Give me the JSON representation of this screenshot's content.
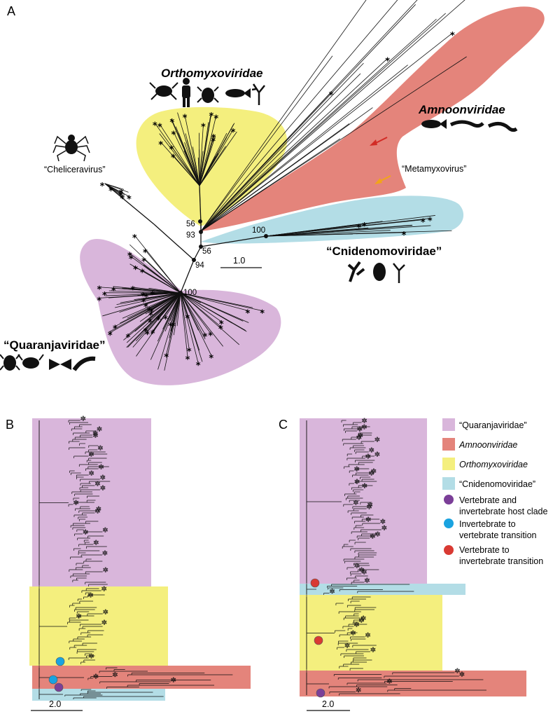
{
  "panels": {
    "a": "A",
    "b": "B",
    "c": "C"
  },
  "families": {
    "orthomyxo": "Orthomyxoviridae",
    "amnoon": "Amnoonviridae",
    "cnidenomo": "“Cnidenomoviridae”",
    "quaranja": "“Quaranjaviridae”"
  },
  "labels": {
    "chelicera": "“Cheliceravirus”",
    "metamyxo": "“Metamyxovirus”"
  },
  "bootstrap": [
    "56",
    "93",
    "56",
    "94",
    "100",
    "100"
  ],
  "scales": {
    "a": "1.0",
    "b": "2.0",
    "c": "2.0"
  },
  "legend": {
    "items": [
      {
        "label": "“Quaranjaviridae”",
        "color": "#d9b6db"
      },
      {
        "label": "Amnoonviridae",
        "color": "#e4847b"
      },
      {
        "label": "Orthomyxoviridae",
        "color": "#f4ef7e"
      },
      {
        "label": "“Cnidenomoviridae”",
        "color": "#b3dde6"
      }
    ],
    "markers": [
      {
        "line1": "Vertebrate and",
        "line2": "invertebrate host clade",
        "color": "#7b3f98"
      },
      {
        "line1": "Invertebrate to",
        "line2": "vertebrate transition",
        "color": "#1aa3e0"
      },
      {
        "line1": "Vertebrate to",
        "line2": "invertebrate transition",
        "color": "#d93a33"
      }
    ]
  },
  "tip_marker": "*"
}
